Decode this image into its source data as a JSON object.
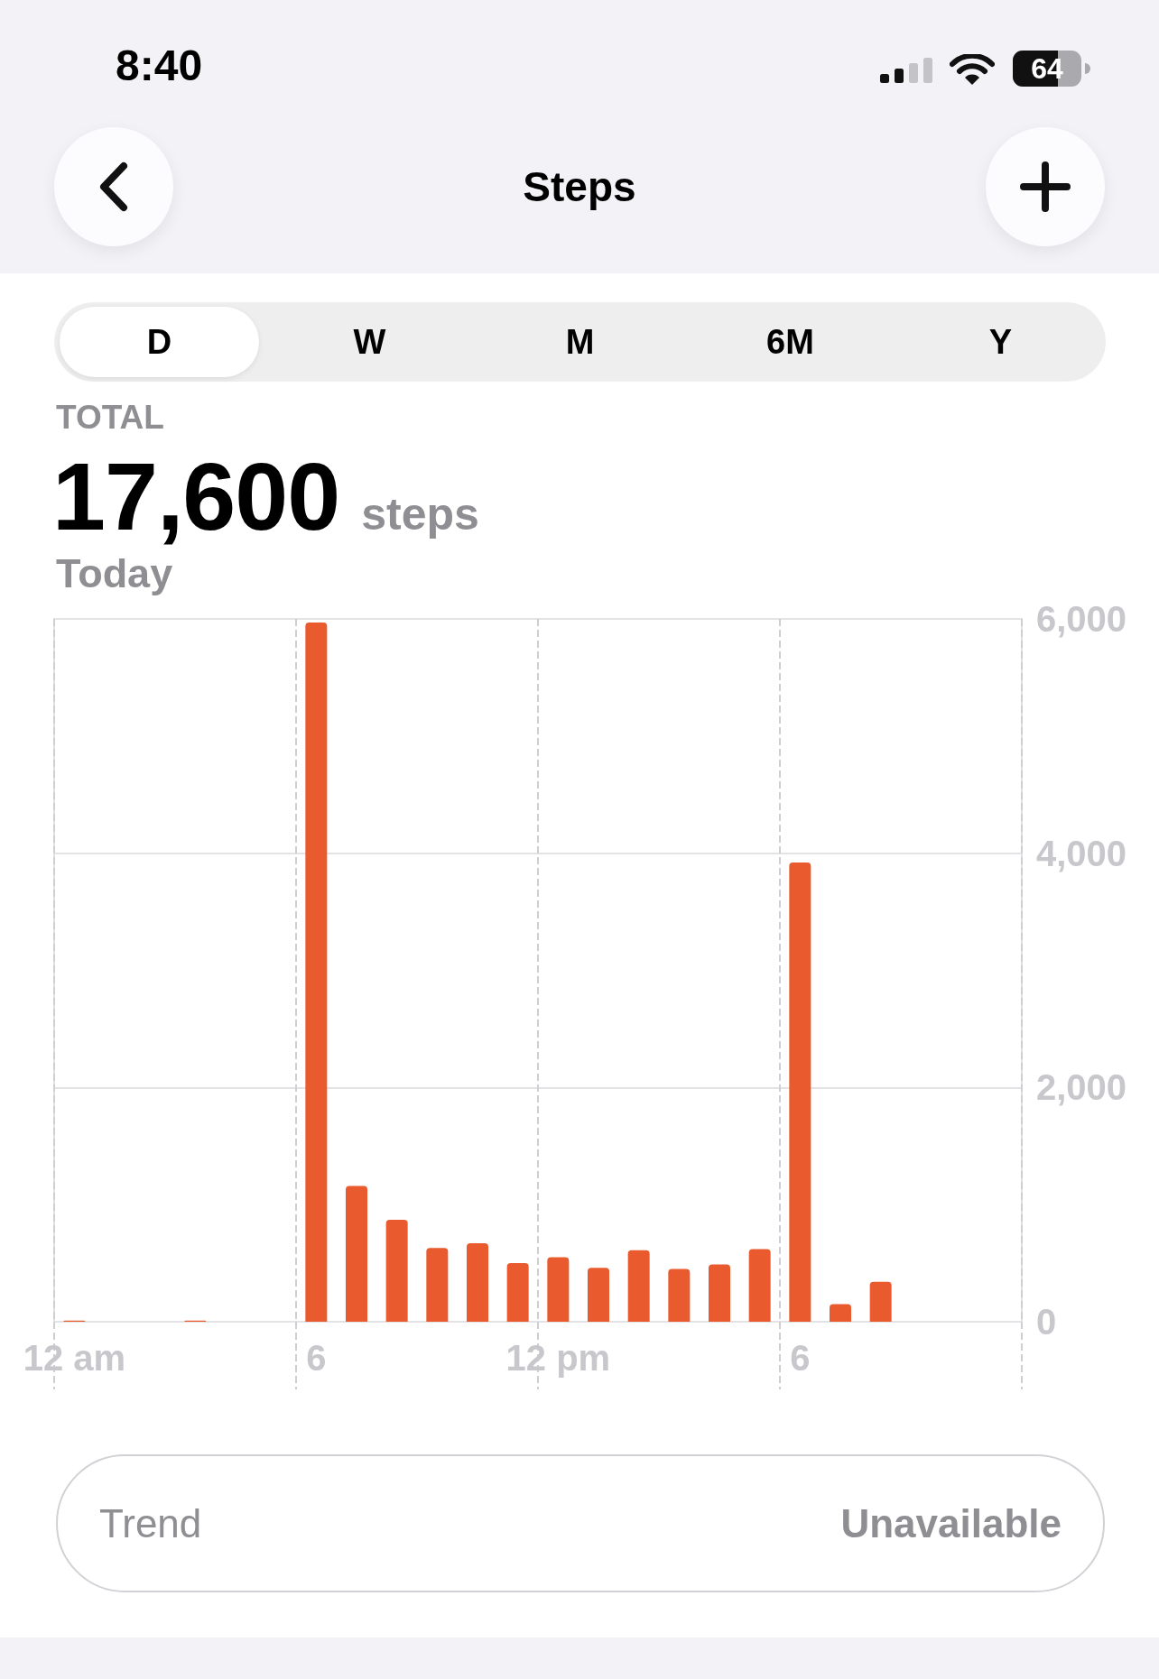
{
  "chart_data": {
    "type": "bar",
    "title": "Steps",
    "annotations": [
      "8:40",
      "64",
      "D",
      "W",
      "M",
      "6M",
      "Y",
      "TOTAL",
      "17,600",
      "steps",
      "Today",
      "Trend",
      "Unavailable"
    ],
    "categories": [
      "12 am",
      null,
      null,
      null,
      null,
      null,
      "6",
      null,
      null,
      null,
      null,
      null,
      "12 pm",
      null,
      null,
      null,
      null,
      null,
      "6",
      null,
      null,
      null,
      null,
      null
    ],
    "values": [
      10,
      null,
      null,
      10,
      null,
      null,
      5970,
      1160,
      870,
      630,
      670,
      500,
      550,
      460,
      610,
      450,
      490,
      620,
      3920,
      150,
      340,
      null,
      null,
      null
    ],
    "color": "#e95b2f",
    "ylim": [
      0,
      6000
    ],
    "yticks": [
      0,
      {
        "value": 2000,
        "label": "2,000"
      },
      {
        "value": 4000,
        "label": "4,000"
      },
      {
        "value": 6000,
        "label": "6,000"
      }
    ],
    "grid": true
  }
}
